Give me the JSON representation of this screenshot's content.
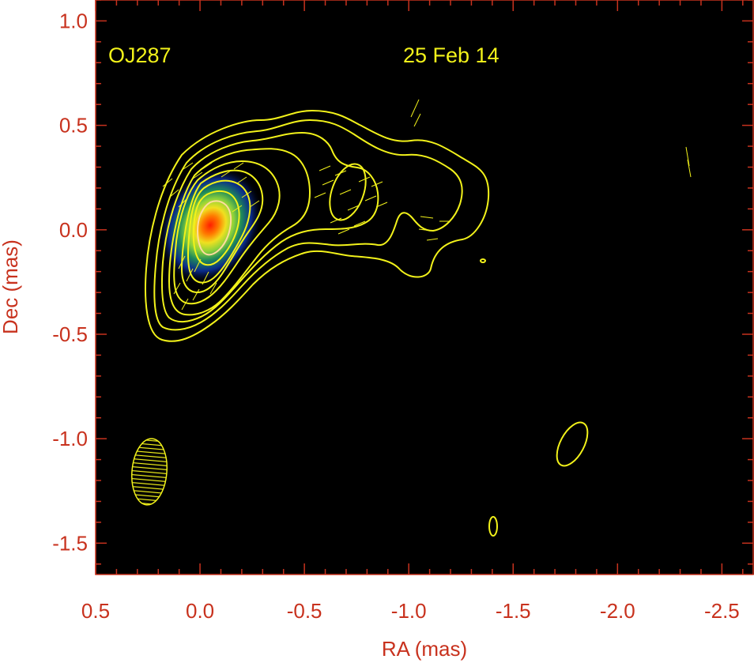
{
  "chart_data": {
    "type": "heatmap",
    "subtype": "VLBI polarization map with total-intensity contours",
    "source_label": "OJ287",
    "date_label": "25 Feb 14",
    "xlabel": "RA (mas)",
    "ylabel": "Dec (mas)",
    "xlim": [
      0.5,
      -2.65
    ],
    "ylim": [
      -1.65,
      1.1
    ],
    "x_axis_reversed": true,
    "x_ticks": [
      0.5,
      0.0,
      -0.5,
      -1.0,
      -1.5,
      -2.0,
      -2.5
    ],
    "x_tick_labels": [
      "0.5",
      "0.0",
      "-0.5",
      "-1.0",
      "-1.5",
      "-2.0",
      "-2.5"
    ],
    "y_ticks": [
      1.0,
      0.5,
      0.0,
      -0.5,
      -1.0,
      -1.5
    ],
    "y_tick_labels": [
      "1.0",
      "0.5",
      "0.0",
      "-0.5",
      "-1.0",
      "-1.5"
    ],
    "grid": false,
    "background_color": "#000000",
    "contour_color": "#f2f21a",
    "axis_text_color": "#c8321e",
    "core_position": [
      0.0,
      0.0
    ],
    "beam": {
      "ra": 0.28,
      "dec": -1.15,
      "major_mas": 0.32,
      "minor_mas": 0.17,
      "pa_deg": 5
    },
    "jet_direction": "west-northwest of core",
    "color_scale": [
      "#000033",
      "#0a2a8a",
      "#1f8a5a",
      "#8cd23a",
      "#f0e020",
      "#ff9a00",
      "#ff1e00"
    ],
    "contour_count_core": 9,
    "isolated_contours": [
      {
        "ra": -1.78,
        "dec": -1.01
      },
      {
        "ra": -1.4,
        "dec": -1.43
      },
      {
        "ra": -1.34,
        "dec": -0.13
      }
    ],
    "evpa_regions": [
      {
        "ra": -0.08,
        "dec": 0.08
      },
      {
        "ra": -0.7,
        "dec": 0.2
      },
      {
        "ra": -1.1,
        "dec": 0.05
      },
      {
        "ra": -1.02,
        "dec": 0.59
      },
      {
        "ra": -2.33,
        "dec": 0.35
      }
    ]
  }
}
